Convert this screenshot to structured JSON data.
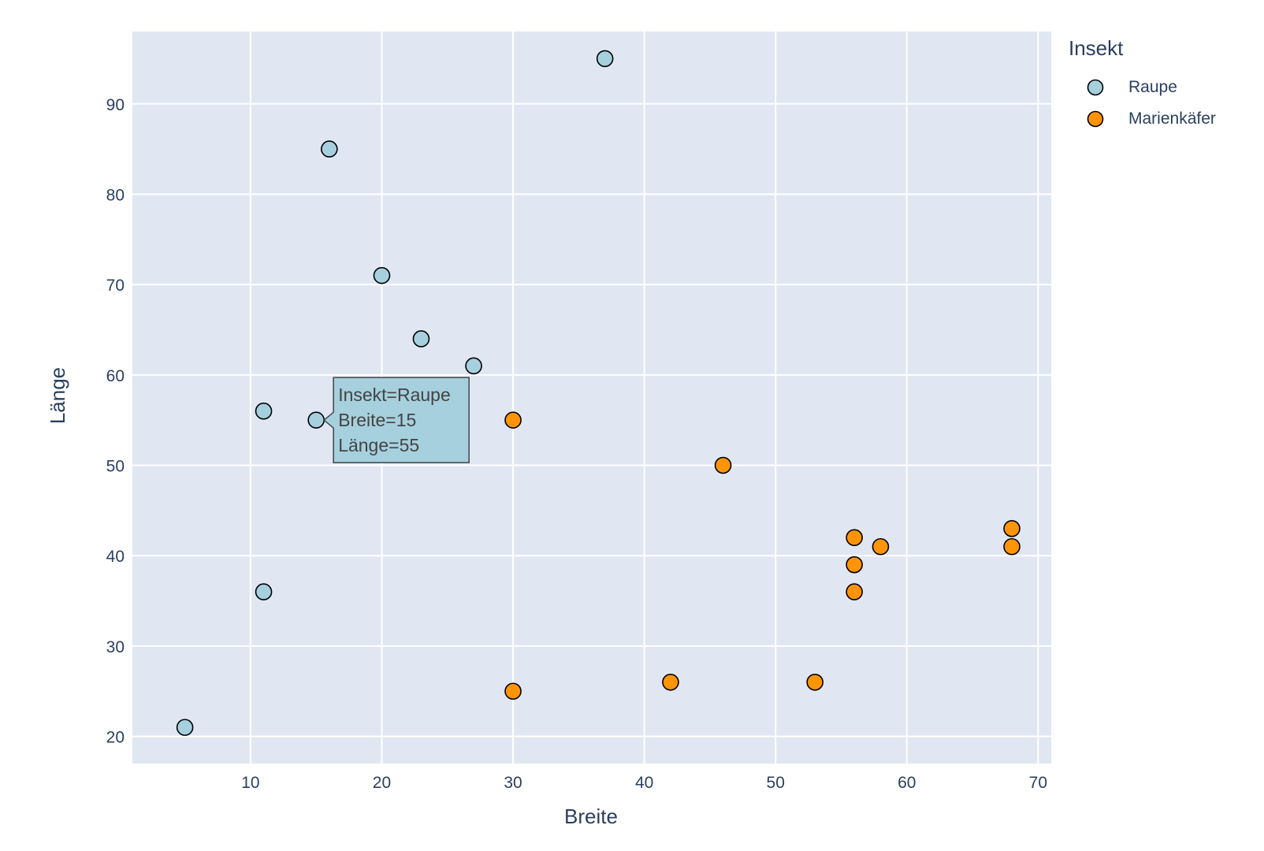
{
  "legend": {
    "title": "Insekt"
  },
  "tooltip": {
    "line1": "Insekt=Raupe",
    "line2": "Breite=15",
    "line3": "Länge=55"
  },
  "chart_data": {
    "type": "scatter",
    "xlabel": "Breite",
    "ylabel": "Länge",
    "xlim": [
      1,
      71
    ],
    "ylim": [
      17,
      98
    ],
    "xticks": [
      10,
      20,
      30,
      40,
      50,
      60,
      70
    ],
    "yticks": [
      20,
      30,
      40,
      50,
      60,
      70,
      80,
      90
    ],
    "grid": true,
    "plot_bgcolor": "#e0e7f3",
    "legend_position": "top-right-outside",
    "series": [
      {
        "name": "Raupe",
        "color": "#a6d0de",
        "points": [
          {
            "x": 37,
            "y": 95
          },
          {
            "x": 16,
            "y": 85
          },
          {
            "x": 20,
            "y": 71
          },
          {
            "x": 23,
            "y": 64
          },
          {
            "x": 27,
            "y": 61
          },
          {
            "x": 11,
            "y": 56
          },
          {
            "x": 15,
            "y": 55
          },
          {
            "x": 11,
            "y": 36
          },
          {
            "x": 5,
            "y": 21
          }
        ]
      },
      {
        "name": "Marienkäfer",
        "color": "#ff9408",
        "points": [
          {
            "x": 30,
            "y": 55
          },
          {
            "x": 46,
            "y": 50
          },
          {
            "x": 56,
            "y": 42
          },
          {
            "x": 58,
            "y": 41
          },
          {
            "x": 56,
            "y": 39
          },
          {
            "x": 56,
            "y": 36
          },
          {
            "x": 68,
            "y": 43
          },
          {
            "x": 68,
            "y": 41
          },
          {
            "x": 42,
            "y": 26
          },
          {
            "x": 53,
            "y": 26
          },
          {
            "x": 30,
            "y": 25
          }
        ]
      }
    ],
    "hover_point": {
      "series": 0,
      "x": 15,
      "y": 55
    }
  }
}
